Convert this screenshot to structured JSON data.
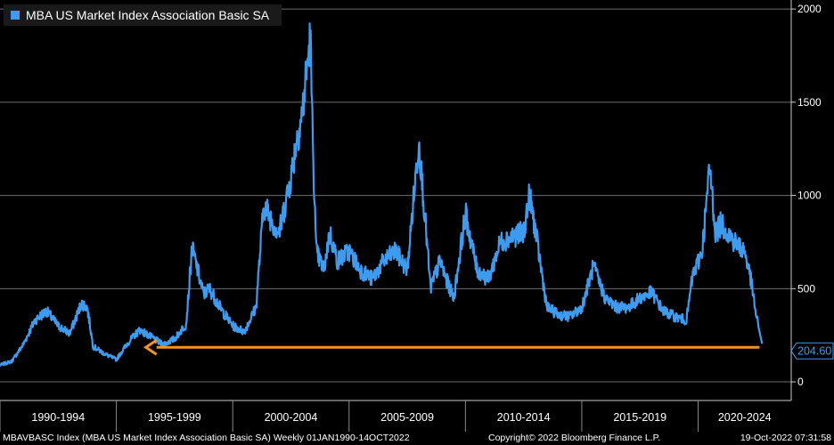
{
  "chart_data": {
    "type": "line",
    "series": [
      {
        "name": "MBA US Market Index Association Basic SA",
        "color": "#3d9bf0",
        "x": [
          "1990-01",
          "1990-07",
          "1991-01",
          "1991-07",
          "1992-01",
          "1992-07",
          "1993-01",
          "1993-07",
          "1993-10",
          "1994-01",
          "1994-07",
          "1995-01",
          "1995-07",
          "1996-01",
          "1996-07",
          "1997-01",
          "1997-07",
          "1998-01",
          "1998-04",
          "1998-10",
          "1999-01",
          "1999-07",
          "2000-01",
          "2000-07",
          "2001-01",
          "2001-05",
          "2001-10",
          "2002-01",
          "2002-07",
          "2002-10",
          "2003-01",
          "2003-05",
          "2003-06",
          "2003-08",
          "2003-12",
          "2004-03",
          "2004-07",
          "2005-01",
          "2005-07",
          "2006-01",
          "2006-07",
          "2007-01",
          "2007-07",
          "2008-01",
          "2008-04",
          "2008-07",
          "2008-12",
          "2009-03",
          "2009-07",
          "2010-01",
          "2010-07",
          "2011-01",
          "2011-07",
          "2012-01",
          "2012-07",
          "2012-10",
          "2013-01",
          "2013-07",
          "2014-01",
          "2014-07",
          "2015-01",
          "2015-07",
          "2016-01",
          "2016-07",
          "2017-01",
          "2017-07",
          "2018-01",
          "2018-07",
          "2019-01",
          "2019-07",
          "2019-10",
          "2020-03",
          "2020-07",
          "2020-10",
          "2021-01",
          "2021-07",
          "2022-01",
          "2022-04",
          "2022-07",
          "2022-10"
        ],
        "values": [
          90,
          110,
          200,
          330,
          380,
          300,
          260,
          420,
          400,
          190,
          150,
          120,
          210,
          280,
          240,
          200,
          230,
          310,
          720,
          470,
          500,
          390,
          300,
          270,
          400,
          950,
          850,
          800,
          1100,
          1300,
          1450,
          1850,
          1400,
          700,
          600,
          800,
          650,
          700,
          600,
          550,
          650,
          700,
          600,
          1300,
          900,
          500,
          650,
          550,
          450,
          900,
          600,
          550,
          750,
          780,
          800,
          1000,
          820,
          400,
          360,
          350,
          400,
          620,
          450,
          400,
          400,
          450,
          480,
          380,
          350,
          330,
          560,
          700,
          1150,
          800,
          850,
          760,
          700,
          560,
          350,
          204.6
        ]
      }
    ],
    "x_tick_labels": [
      "1990-1994",
      "1995-1999",
      "2000-2004",
      "2005-2009",
      "2010-2014",
      "2015-2019",
      "2020-2024"
    ],
    "y_ticks": [
      0,
      500,
      1000,
      1500,
      2000
    ],
    "ylim": [
      -100,
      2010
    ],
    "last_value_label": "204.60",
    "reference_value": 204.6,
    "reference_color": "#f7931e",
    "grid": true,
    "legend": "top-left",
    "y_axis_side": "right"
  },
  "legend_label": "MBA US Market Index Association Basic SA",
  "footer": {
    "left": "MBAVBASC Index (MBA US Market Index Association Basic SA)  Weekly 01JAN1990-14OCT2022",
    "center": "Copyright© 2022 Bloomberg Finance L.P.",
    "right": "19-Oct-2022 07:31:58"
  }
}
